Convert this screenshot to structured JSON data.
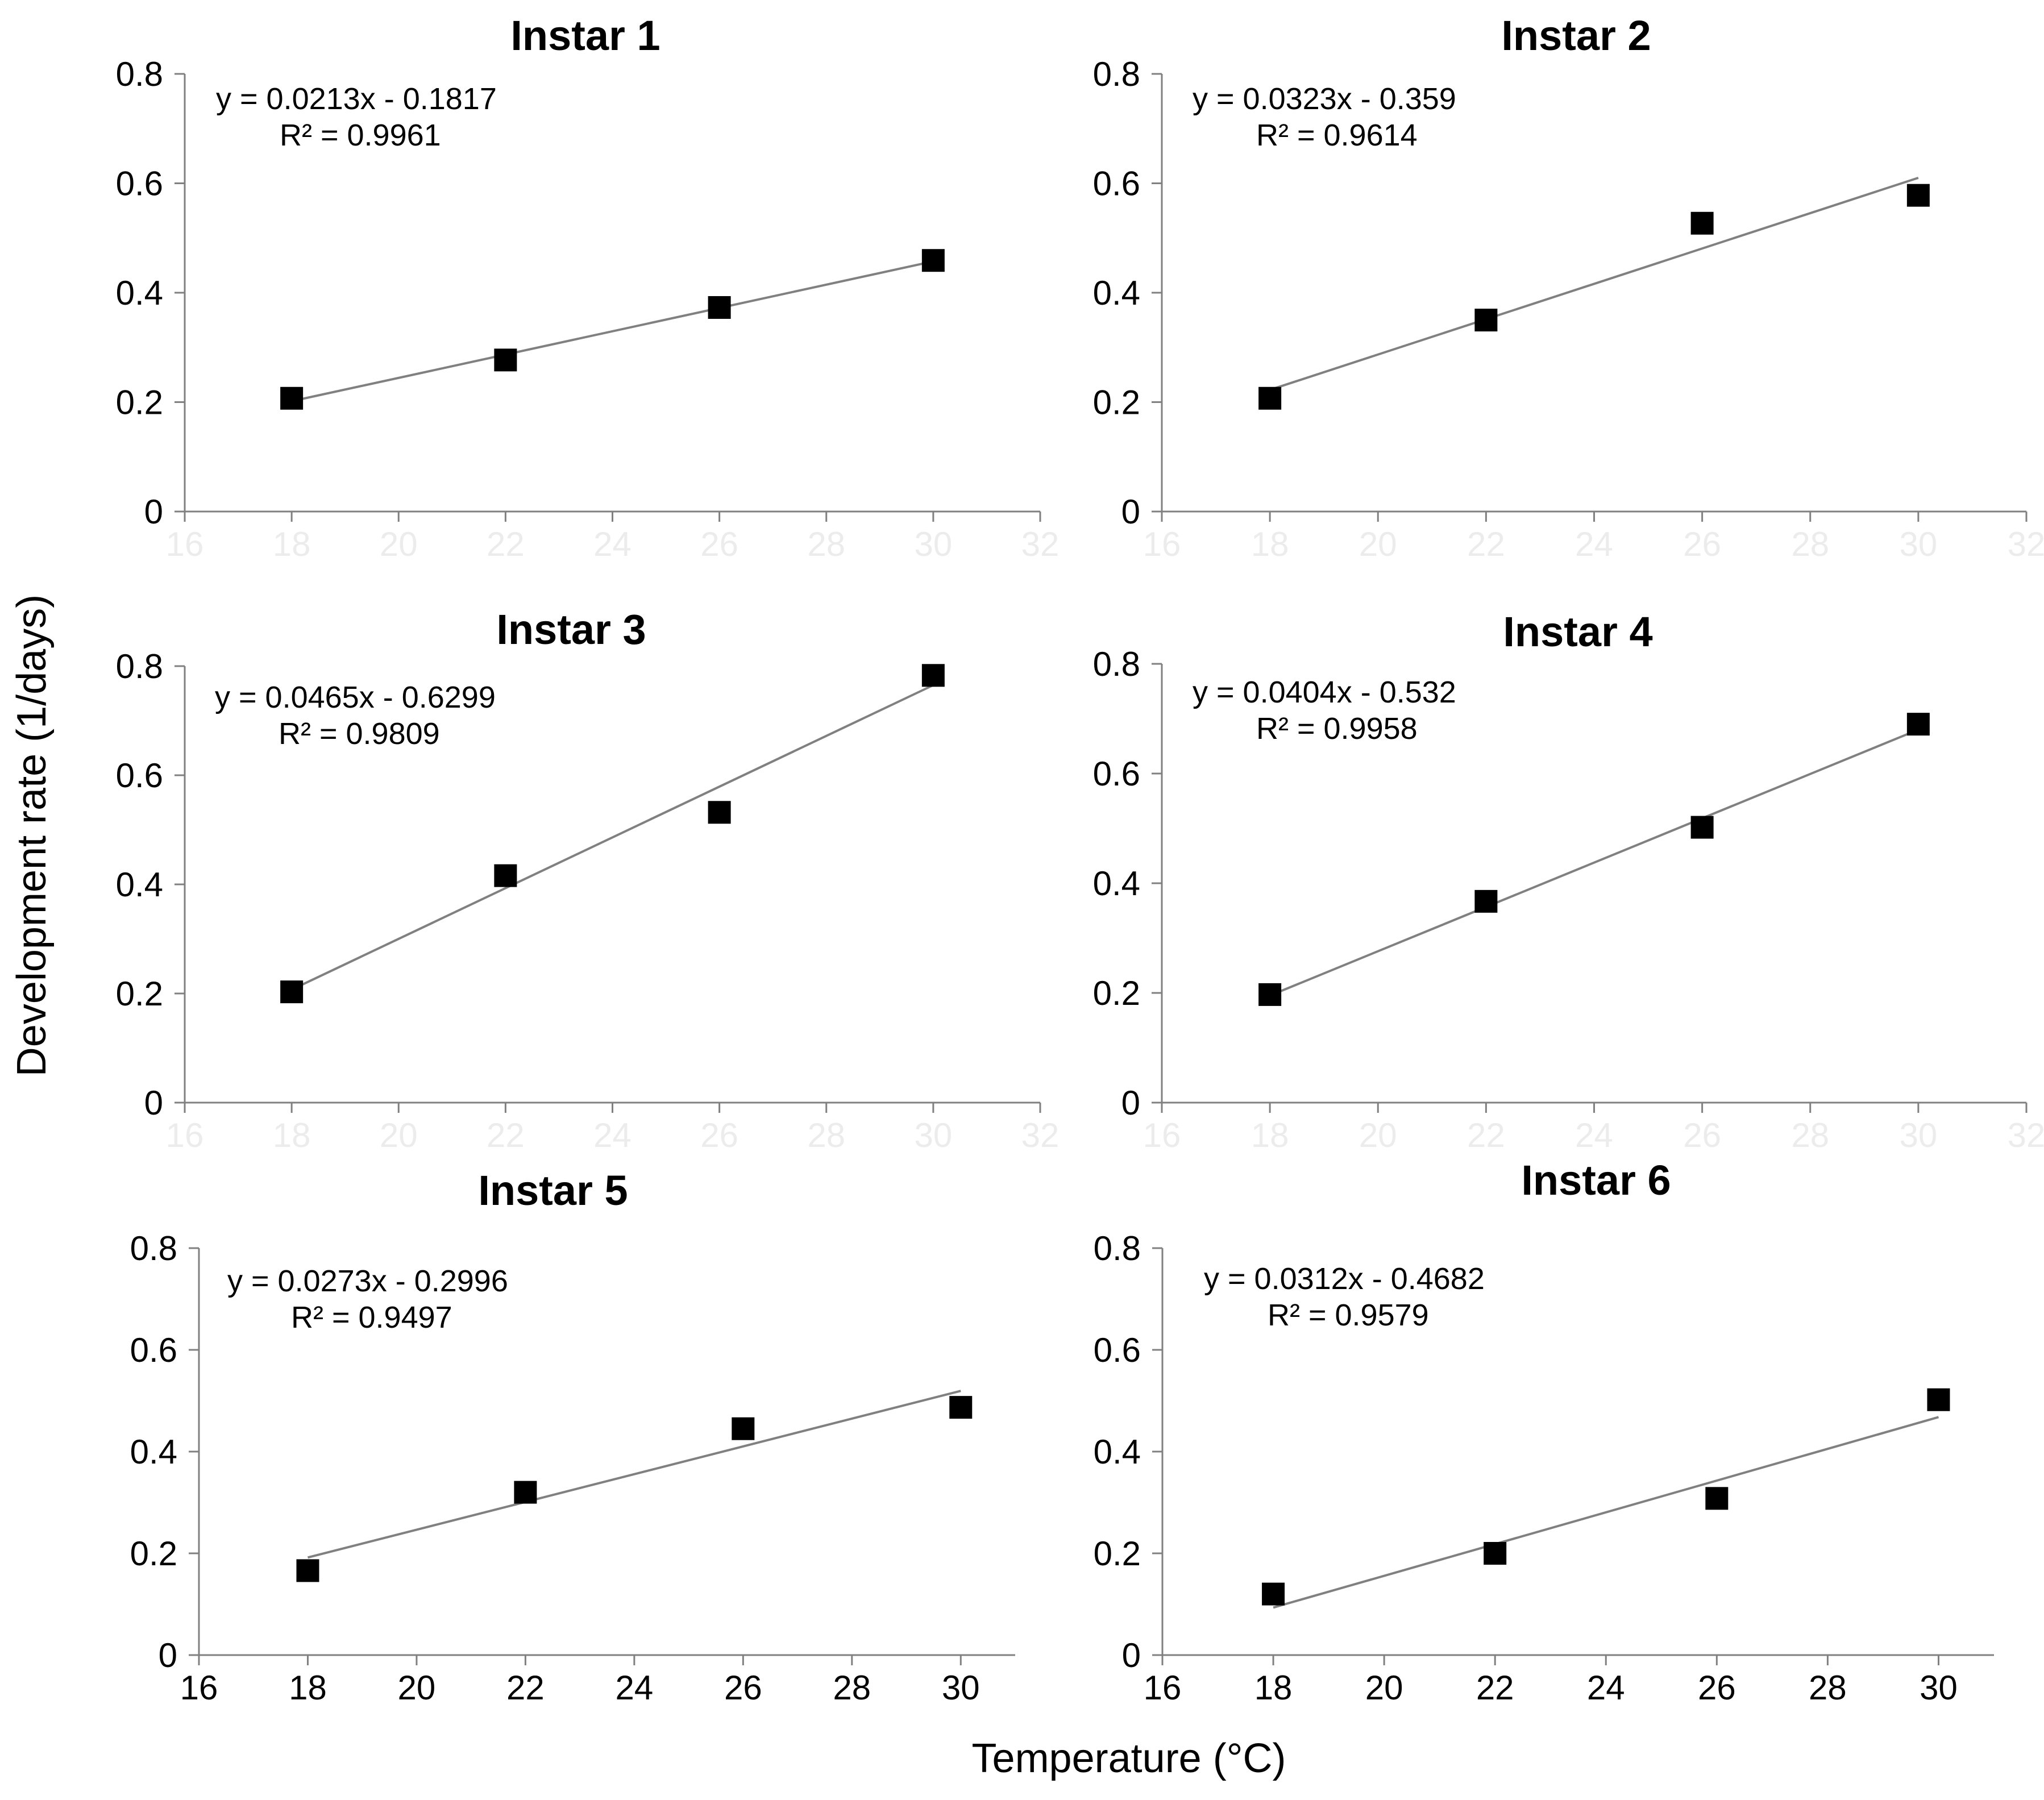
{
  "y_axis_title": "Development rate (1/days)",
  "x_axis_title": "Temperature (°C)",
  "colors": {
    "marker": "#000000",
    "trendline": "#808080",
    "axis": "#808080",
    "faded_tick": "#ececec"
  },
  "chart_data": [
    {
      "type": "scatter",
      "title": "Instar 1",
      "xlabel": "Temperature (°C)",
      "ylabel": "Development rate (1/days)",
      "xlim": [
        16,
        32
      ],
      "ylim": [
        0,
        0.8
      ],
      "x_ticks": [
        "16",
        "18",
        "20",
        "22",
        "24",
        "26",
        "28",
        "30",
        "32"
      ],
      "y_ticks": [
        "0",
        "0.2",
        "0.4",
        "0.6",
        "0.8"
      ],
      "x_tick_labels_visible": false,
      "points": [
        {
          "x": 18,
          "y": 0.207
        },
        {
          "x": 22,
          "y": 0.277
        },
        {
          "x": 26,
          "y": 0.373
        },
        {
          "x": 30,
          "y": 0.459
        }
      ],
      "trendline": {
        "slope": 0.0213,
        "intercept": -0.1817,
        "x_range": [
          18,
          30
        ]
      },
      "equation": "y = 0.0213x - 0.1817",
      "r_squared": "R² = 0.9961",
      "grid": false
    },
    {
      "type": "scatter",
      "title": "Instar 2",
      "xlabel": "Temperature (°C)",
      "ylabel": "Development rate (1/days)",
      "xlim": [
        16,
        32
      ],
      "ylim": [
        0,
        0.8
      ],
      "x_ticks": [
        "16",
        "18",
        "20",
        "22",
        "24",
        "26",
        "28",
        "30",
        "32"
      ],
      "y_ticks": [
        "0",
        "0.2",
        "0.4",
        "0.6",
        "0.8"
      ],
      "x_tick_labels_visible": false,
      "points": [
        {
          "x": 18,
          "y": 0.207
        },
        {
          "x": 22,
          "y": 0.35
        },
        {
          "x": 26,
          "y": 0.527
        },
        {
          "x": 30,
          "y": 0.578
        }
      ],
      "trendline": {
        "slope": 0.0323,
        "intercept": -0.359,
        "x_range": [
          18,
          30
        ]
      },
      "equation": "y = 0.0323x - 0.359",
      "r_squared": "R² = 0.9614",
      "grid": false
    },
    {
      "type": "scatter",
      "title": "Instar 3",
      "xlabel": "Temperature (°C)",
      "ylabel": "Development rate (1/days)",
      "xlim": [
        16,
        32
      ],
      "ylim": [
        0,
        0.8
      ],
      "x_ticks": [
        "16",
        "18",
        "20",
        "22",
        "24",
        "26",
        "28",
        "30",
        "32"
      ],
      "y_ticks": [
        "0",
        "0.2",
        "0.4",
        "0.6",
        "0.8"
      ],
      "x_tick_labels_visible": false,
      "points": [
        {
          "x": 18,
          "y": 0.203
        },
        {
          "x": 22,
          "y": 0.416
        },
        {
          "x": 26,
          "y": 0.532
        },
        {
          "x": 30,
          "y": 0.783
        }
      ],
      "trendline": {
        "slope": 0.0465,
        "intercept": -0.6299,
        "x_range": [
          18,
          30
        ]
      },
      "equation": "y = 0.0465x - 0.6299",
      "r_squared": "R² = 0.9809",
      "grid": false
    },
    {
      "type": "scatter",
      "title": "Instar 4",
      "xlabel": "Temperature (°C)",
      "ylabel": "Development rate (1/days)",
      "xlim": [
        16,
        32
      ],
      "ylim": [
        0,
        0.8
      ],
      "x_ticks": [
        "16",
        "18",
        "20",
        "22",
        "24",
        "26",
        "28",
        "30",
        "32"
      ],
      "y_ticks": [
        "0",
        "0.2",
        "0.4",
        "0.6",
        "0.8"
      ],
      "x_tick_labels_visible": false,
      "points": [
        {
          "x": 18,
          "y": 0.197
        },
        {
          "x": 22,
          "y": 0.367
        },
        {
          "x": 26,
          "y": 0.502
        },
        {
          "x": 30,
          "y": 0.69
        }
      ],
      "trendline": {
        "slope": 0.0404,
        "intercept": -0.532,
        "x_range": [
          18,
          30
        ]
      },
      "equation": "y = 0.0404x - 0.532",
      "r_squared": "R² = 0.9958",
      "grid": false
    },
    {
      "type": "scatter",
      "title": "Instar 5",
      "xlabel": "Temperature (°C)",
      "ylabel": "Development rate (1/days)",
      "xlim": [
        16,
        31
      ],
      "ylim": [
        0,
        0.8
      ],
      "x_ticks": [
        "16",
        "18",
        "20",
        "22",
        "24",
        "26",
        "28",
        "30"
      ],
      "y_ticks": [
        "0",
        "0.2",
        "0.4",
        "0.6",
        "0.8"
      ],
      "x_tick_labels_visible": true,
      "points": [
        {
          "x": 18,
          "y": 0.166
        },
        {
          "x": 22,
          "y": 0.32
        },
        {
          "x": 26,
          "y": 0.445
        },
        {
          "x": 30,
          "y": 0.487
        }
      ],
      "trendline": {
        "slope": 0.0273,
        "intercept": -0.2996,
        "x_range": [
          18,
          30
        ]
      },
      "equation": "y = 0.0273x - 0.2996",
      "r_squared": "R² = 0.9497",
      "grid": false
    },
    {
      "type": "scatter",
      "title": "Instar 6",
      "xlabel": "Temperature (°C)",
      "ylabel": "Development rate (1/days)",
      "xlim": [
        16,
        31
      ],
      "ylim": [
        0,
        0.8
      ],
      "x_ticks": [
        "16",
        "18",
        "20",
        "22",
        "24",
        "26",
        "28",
        "30"
      ],
      "y_ticks": [
        "0",
        "0.2",
        "0.4",
        "0.6",
        "0.8"
      ],
      "x_tick_labels_visible": true,
      "points": [
        {
          "x": 18,
          "y": 0.12
        },
        {
          "x": 22,
          "y": 0.2
        },
        {
          "x": 26,
          "y": 0.308
        },
        {
          "x": 30,
          "y": 0.502
        }
      ],
      "trendline": {
        "slope": 0.0312,
        "intercept": -0.4682,
        "x_range": [
          18,
          30
        ]
      },
      "equation": "y = 0.0312x - 0.4682",
      "r_squared": "R² = 0.9579",
      "grid": false
    }
  ]
}
